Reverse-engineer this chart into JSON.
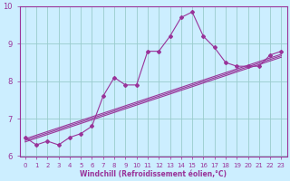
{
  "xlabel": "Windchill (Refroidissement éolien,°C)",
  "xlim": [
    -0.5,
    23.5
  ],
  "ylim": [
    6,
    10
  ],
  "yticks": [
    6,
    7,
    8,
    9,
    10
  ],
  "xticks": [
    0,
    1,
    2,
    3,
    4,
    5,
    6,
    7,
    8,
    9,
    10,
    11,
    12,
    13,
    14,
    15,
    16,
    17,
    18,
    19,
    20,
    21,
    22,
    23
  ],
  "bg_color": "#cceeff",
  "line_color": "#993399",
  "grid_color": "#99cccc",
  "series": [
    {
      "x": [
        0,
        1,
        2,
        3,
        4,
        5,
        6,
        7,
        8,
        9,
        10,
        11,
        12,
        13,
        14,
        15,
        16,
        17,
        18,
        19,
        20,
        21,
        22,
        23
      ],
      "y": [
        6.5,
        6.3,
        6.4,
        6.3,
        6.5,
        6.6,
        6.8,
        7.6,
        8.1,
        7.9,
        7.9,
        8.8,
        8.8,
        9.2,
        9.7,
        9.85,
        9.2,
        8.9,
        8.5,
        8.4,
        8.4,
        8.4,
        8.7,
        8.8
      ],
      "marker": "D",
      "markersize": 2.0,
      "linewidth": 0.8,
      "has_marker": true
    },
    {
      "x": [
        0,
        23
      ],
      "y": [
        6.42,
        8.68
      ],
      "marker": null,
      "markersize": 0,
      "linewidth": 0.8,
      "has_marker": false
    },
    {
      "x": [
        0,
        23
      ],
      "y": [
        6.38,
        8.64
      ],
      "marker": null,
      "markersize": 0,
      "linewidth": 0.8,
      "has_marker": false
    },
    {
      "x": [
        0,
        23
      ],
      "y": [
        6.46,
        8.72
      ],
      "marker": null,
      "markersize": 0,
      "linewidth": 0.8,
      "has_marker": false
    }
  ]
}
